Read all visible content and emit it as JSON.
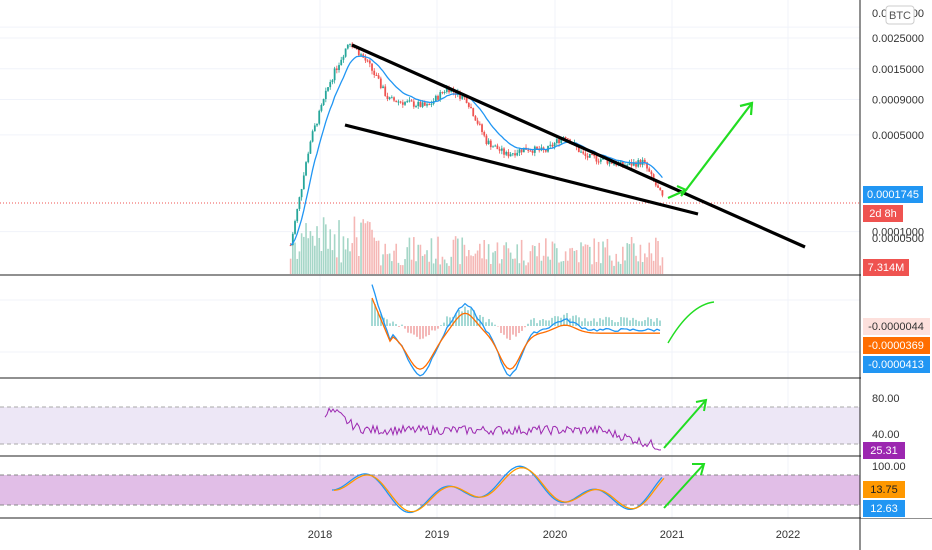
{
  "header": {
    "currency_badge": "BTC"
  },
  "main_pane": {
    "price_axis_ticks": [
      "0.0030000",
      "0.0025000",
      "0.0015000",
      "0.0009000",
      "0.0005000",
      "0.0001000"
    ],
    "price_axis_tick_values": [
      0.003,
      0.0025,
      0.0015,
      0.0009,
      0.0005,
      0.0001
    ],
    "price_axis_mid_tick": "0.0000500",
    "last_price": "0.0001745",
    "countdown": "2d 8h",
    "volume_label": "7.314M",
    "colors": {
      "up": "#26a69a",
      "down": "#ef5350",
      "ema": "#2196f3",
      "trendline": "#000000",
      "arrow": "#22dd22"
    }
  },
  "macd": {
    "histogram_value": "-0.0000044",
    "signal_value": "-0.0000369",
    "macd_value": "-0.0000413",
    "colors": {
      "macd": "#2196f3",
      "signal": "#ff6d00",
      "histogram_pos": "#26a69a",
      "histogram_neg": "#ef5350"
    }
  },
  "rsi": {
    "levels": [
      "80.00",
      "40.00"
    ],
    "value": "25.31",
    "upper_band": 70,
    "lower_band": 30,
    "colors": {
      "line": "#9c27b0",
      "band": "#ede7f6"
    }
  },
  "stoch": {
    "level_top": "100.00",
    "value_1": "13.75",
    "value_2": "12.63",
    "upper_band": 80,
    "lower_band": 20,
    "colors": {
      "k": "#2196f3",
      "d": "#ff9800",
      "band": "#e1bee7"
    }
  },
  "time_axis": [
    "2018",
    "2019",
    "2020",
    "2021",
    "2022"
  ],
  "chart_data": {
    "type": "line",
    "title": "",
    "x": [
      "2017-10",
      "2017-12",
      "2018-02",
      "2018-04",
      "2018-06",
      "2018-08",
      "2018-10",
      "2018-12",
      "2019-02",
      "2019-04",
      "2019-06",
      "2019-08",
      "2019-10",
      "2019-12",
      "2020-02",
      "2020-04",
      "2020-06",
      "2020-08",
      "2020-10",
      "2020-12"
    ],
    "series": [
      {
        "values": [
          8e-05,
          0.00045,
          0.0012,
          0.0024,
          0.0016,
          0.0009,
          0.00085,
          0.0008,
          0.0011,
          0.0009,
          0.00045,
          0.00036,
          0.0004,
          0.00038,
          0.0005,
          0.00035,
          0.00033,
          0.0003,
          0.00032,
          0.0001745
        ]
      }
    ],
    "yscale": "log",
    "trendline_upper": [
      [
        "2018-04",
        0.0025
      ],
      [
        "2021-12",
        6e-05
      ]
    ],
    "trendline_lower": [
      [
        "2018-03",
        0.0007
      ],
      [
        "2021-02",
        0.00013
      ]
    ],
    "projection_target_date": "2021-07"
  }
}
